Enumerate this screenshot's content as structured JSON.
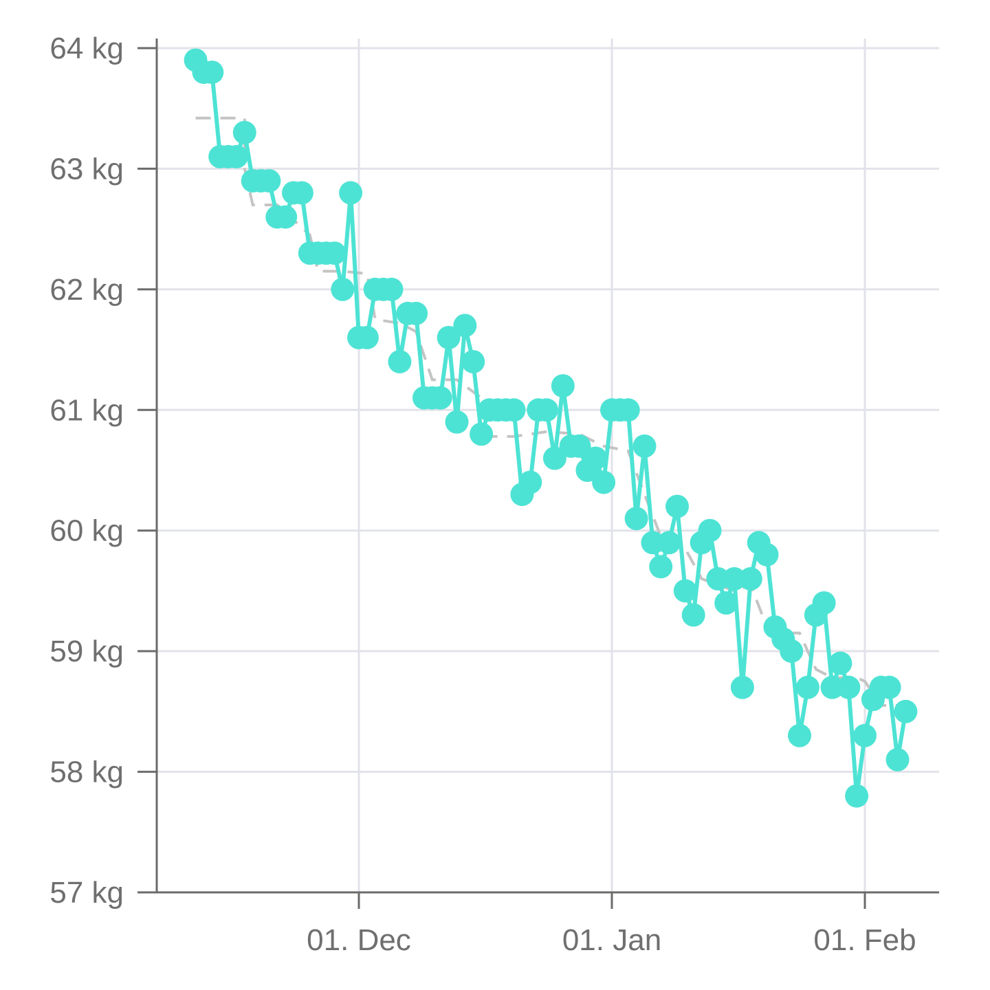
{
  "chart_data": {
    "type": "line",
    "title": "",
    "xlabel": "",
    "ylabel": "",
    "y_unit": "kg",
    "ylim": [
      57,
      64
    ],
    "xlim": [
      "2024-11-07",
      "2025-02-10"
    ],
    "y_ticks": [
      "64 kg",
      "63 kg",
      "62 kg",
      "61 kg",
      "60 kg",
      "59 kg",
      "58 kg",
      "57 kg"
    ],
    "y_tick_values": [
      64,
      63,
      62,
      61,
      60,
      59,
      58,
      57
    ],
    "x_ticks": [
      {
        "date": "2024-12-01",
        "label": "01. Dec"
      },
      {
        "date": "2025-01-01",
        "label": "01. Jan"
      },
      {
        "date": "2025-02-01",
        "label": "01. Feb"
      }
    ],
    "grid": true,
    "legend": "none",
    "colors": {
      "series": "#4de3d4",
      "trend": "#c4c4c4",
      "axis": "#6b6b6b",
      "grid": "#e2e3ea",
      "tick_text": "#6f6f6f"
    },
    "series": [
      {
        "style": "solid line with circle markers",
        "points": [
          [
            "2024-11-11",
            63.9
          ],
          [
            "2024-11-12",
            63.8
          ],
          [
            "2024-11-13",
            63.8
          ],
          [
            "2024-11-14",
            63.1
          ],
          [
            "2024-11-15",
            63.1
          ],
          [
            "2024-11-16",
            63.1
          ],
          [
            "2024-11-17",
            63.3
          ],
          [
            "2024-11-18",
            62.9
          ],
          [
            "2024-11-19",
            62.9
          ],
          [
            "2024-11-20",
            62.9
          ],
          [
            "2024-11-21",
            62.6
          ],
          [
            "2024-11-22",
            62.6
          ],
          [
            "2024-11-23",
            62.8
          ],
          [
            "2024-11-24",
            62.8
          ],
          [
            "2024-11-25",
            62.3
          ],
          [
            "2024-11-26",
            62.3
          ],
          [
            "2024-11-27",
            62.3
          ],
          [
            "2024-11-28",
            62.3
          ],
          [
            "2024-11-29",
            62.0
          ],
          [
            "2024-11-30",
            62.8
          ],
          [
            "2024-12-01",
            61.6
          ],
          [
            "2024-12-02",
            61.6
          ],
          [
            "2024-12-03",
            62.0
          ],
          [
            "2024-12-04",
            62.0
          ],
          [
            "2024-12-05",
            62.0
          ],
          [
            "2024-12-06",
            61.4
          ],
          [
            "2024-12-07",
            61.8
          ],
          [
            "2024-12-08",
            61.8
          ],
          [
            "2024-12-09",
            61.1
          ],
          [
            "2024-12-10",
            61.1
          ],
          [
            "2024-12-11",
            61.1
          ],
          [
            "2024-12-12",
            61.6
          ],
          [
            "2024-12-13",
            60.9
          ],
          [
            "2024-12-14",
            61.7
          ],
          [
            "2024-12-15",
            61.4
          ],
          [
            "2024-12-16",
            60.8
          ],
          [
            "2024-12-17",
            61.0
          ],
          [
            "2024-12-18",
            61.0
          ],
          [
            "2024-12-19",
            61.0
          ],
          [
            "2024-12-20",
            61.0
          ],
          [
            "2024-12-21",
            60.3
          ],
          [
            "2024-12-22",
            60.4
          ],
          [
            "2024-12-23",
            61.0
          ],
          [
            "2024-12-24",
            61.0
          ],
          [
            "2024-12-25",
            60.6
          ],
          [
            "2024-12-26",
            61.2
          ],
          [
            "2024-12-27",
            60.7
          ],
          [
            "2024-12-28",
            60.7
          ],
          [
            "2024-12-29",
            60.5
          ],
          [
            "2024-12-30",
            60.6
          ],
          [
            "2024-12-31",
            60.4
          ],
          [
            "2025-01-01",
            61.0
          ],
          [
            "2025-01-02",
            61.0
          ],
          [
            "2025-01-03",
            61.0
          ],
          [
            "2025-01-04",
            60.1
          ],
          [
            "2025-01-05",
            60.7
          ],
          [
            "2025-01-06",
            59.9
          ],
          [
            "2025-01-07",
            59.7
          ],
          [
            "2025-01-08",
            59.9
          ],
          [
            "2025-01-09",
            60.2
          ],
          [
            "2025-01-10",
            59.5
          ],
          [
            "2025-01-11",
            59.3
          ],
          [
            "2025-01-12",
            59.9
          ],
          [
            "2025-01-13",
            60.0
          ],
          [
            "2025-01-14",
            59.6
          ],
          [
            "2025-01-15",
            59.4
          ],
          [
            "2025-01-16",
            59.6
          ],
          [
            "2025-01-17",
            58.7
          ],
          [
            "2025-01-18",
            59.6
          ],
          [
            "2025-01-19",
            59.9
          ],
          [
            "2025-01-20",
            59.8
          ],
          [
            "2025-01-21",
            59.2
          ],
          [
            "2025-01-22",
            59.1
          ],
          [
            "2025-01-23",
            59.0
          ],
          [
            "2025-01-24",
            58.3
          ],
          [
            "2025-01-25",
            58.7
          ],
          [
            "2025-01-26",
            59.3
          ],
          [
            "2025-01-27",
            59.4
          ],
          [
            "2025-01-28",
            58.7
          ],
          [
            "2025-01-29",
            58.9
          ],
          [
            "2025-01-30",
            58.7
          ],
          [
            "2025-01-31",
            57.8
          ],
          [
            "2025-02-01",
            58.3
          ],
          [
            "2025-02-02",
            58.6
          ],
          [
            "2025-02-03",
            58.7
          ],
          [
            "2025-02-04",
            58.7
          ],
          [
            "2025-02-05",
            58.1
          ],
          [
            "2025-02-06",
            58.5
          ]
        ]
      },
      {
        "style": "dashed step line",
        "points": [
          [
            "2024-11-11",
            63.42
          ],
          [
            "2024-11-17",
            63.42
          ],
          [
            "2024-11-17",
            63.0
          ],
          [
            "2024-11-18",
            62.7
          ],
          [
            "2024-11-21",
            62.7
          ],
          [
            "2024-11-25",
            62.45
          ],
          [
            "2024-11-26",
            62.15
          ],
          [
            "2024-11-29",
            62.15
          ],
          [
            "2024-12-02",
            62.13
          ],
          [
            "2024-12-03",
            61.75
          ],
          [
            "2024-12-06",
            61.72
          ],
          [
            "2024-12-08",
            61.65
          ],
          [
            "2024-12-10",
            61.25
          ],
          [
            "2024-12-13",
            61.25
          ],
          [
            "2024-12-16",
            61.1
          ],
          [
            "2024-12-17",
            60.78
          ],
          [
            "2024-12-20",
            60.78
          ],
          [
            "2024-12-24",
            60.82
          ],
          [
            "2024-12-28",
            60.8
          ],
          [
            "2024-12-31",
            60.7
          ],
          [
            "2025-01-03",
            60.66
          ],
          [
            "2025-01-05",
            60.3
          ],
          [
            "2025-01-07",
            59.95
          ],
          [
            "2025-01-10",
            59.85
          ],
          [
            "2025-01-12",
            59.6
          ],
          [
            "2025-01-16",
            59.5
          ],
          [
            "2025-01-18",
            59.55
          ],
          [
            "2025-01-20",
            59.2
          ],
          [
            "2025-01-22",
            59.15
          ],
          [
            "2025-01-24",
            59.15
          ],
          [
            "2025-01-26",
            58.85
          ],
          [
            "2025-01-28",
            58.78
          ],
          [
            "2025-01-31",
            58.78
          ],
          [
            "2025-02-01",
            58.75
          ],
          [
            "2025-02-03",
            58.55
          ],
          [
            "2025-02-06",
            58.55
          ]
        ]
      }
    ]
  }
}
